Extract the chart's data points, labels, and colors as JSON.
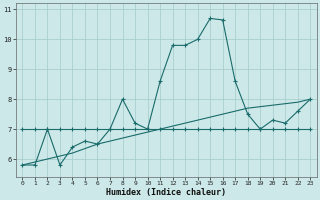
{
  "xlabel": "Humidex (Indice chaleur)",
  "bg_color": "#cce8e8",
  "grid_color": "#aacece",
  "line_color": "#1a6b6b",
  "xlim": [
    -0.5,
    23.5
  ],
  "ylim": [
    5.4,
    11.2
  ],
  "yticks": [
    6,
    7,
    8,
    9,
    10,
    11
  ],
  "xticks": [
    0,
    1,
    2,
    3,
    4,
    5,
    6,
    7,
    8,
    9,
    10,
    11,
    12,
    13,
    14,
    15,
    16,
    17,
    18,
    19,
    20,
    21,
    22,
    23
  ],
  "series1_x": [
    0,
    1,
    2,
    3,
    4,
    5,
    6,
    7,
    8,
    9,
    10,
    11,
    12,
    13,
    14,
    15,
    16,
    17,
    18,
    19,
    20,
    21,
    22,
    23
  ],
  "series1_y": [
    5.8,
    5.8,
    7.0,
    5.8,
    6.4,
    6.6,
    6.5,
    7.0,
    8.0,
    7.2,
    7.0,
    8.6,
    9.8,
    9.8,
    10.0,
    10.7,
    10.65,
    8.6,
    7.5,
    7.0,
    7.3,
    7.2,
    7.6,
    8.0
  ],
  "series2_x": [
    0,
    1,
    2,
    3,
    4,
    5,
    6,
    7,
    8,
    9,
    10,
    11,
    12,
    13,
    14,
    15,
    16,
    17,
    18,
    19,
    20,
    21,
    22,
    23
  ],
  "series2_y": [
    5.8,
    5.9,
    6.0,
    6.1,
    6.2,
    6.35,
    6.5,
    6.6,
    6.7,
    6.8,
    6.9,
    7.0,
    7.1,
    7.2,
    7.3,
    7.4,
    7.5,
    7.6,
    7.7,
    7.75,
    7.8,
    7.85,
    7.9,
    8.0
  ],
  "series3_x": [
    0,
    1,
    2,
    3,
    4,
    5,
    6,
    7,
    8,
    9,
    10,
    11,
    12,
    13,
    14,
    15,
    16,
    17,
    18,
    19,
    20,
    21,
    22,
    23
  ],
  "series3_y": [
    7.0,
    7.0,
    7.0,
    7.0,
    7.0,
    7.0,
    7.0,
    7.0,
    7.0,
    7.0,
    7.0,
    7.0,
    7.0,
    7.0,
    7.0,
    7.0,
    7.0,
    7.0,
    7.0,
    7.0,
    7.0,
    7.0,
    7.0,
    7.0
  ]
}
